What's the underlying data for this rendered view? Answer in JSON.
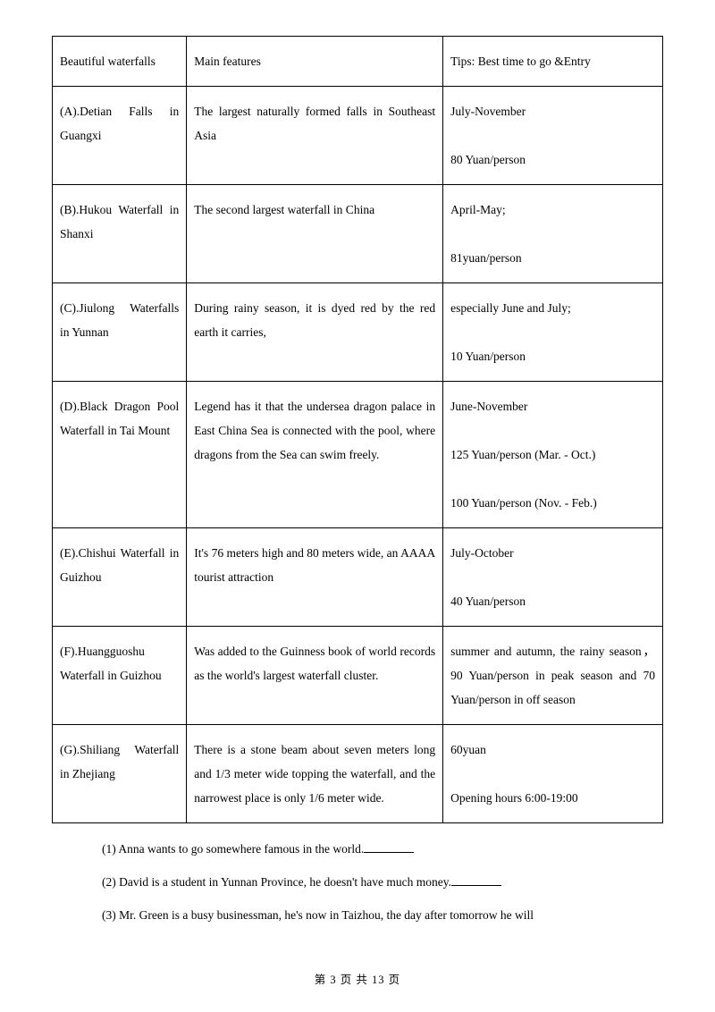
{
  "table": {
    "header": {
      "c1": "Beautiful waterfalls",
      "c2": "Main features",
      "c3": "Tips: Best time to go &Entry"
    },
    "rows": [
      {
        "c1": "(A).Detian Falls in Guangxi",
        "c2": "The largest naturally formed falls in Southeast Asia",
        "c3": "July-November\n80 Yuan/person"
      },
      {
        "c1": "(B).Hukou Waterfall in Shanxi",
        "c2": "The second largest waterfall in China",
        "c3": "April-May;\n81yuan/person"
      },
      {
        "c1": "(C).Jiulong Waterfalls in Yunnan",
        "c2": "During rainy season, it is dyed red by the red earth it carries,",
        "c3": "especially June and July;\n10 Yuan/person"
      },
      {
        "c1": "(D).Black Dragon Pool Waterfall in Tai Mount",
        "c2": "Legend has it that the undersea dragon palace in East China Sea is connected with the pool, where dragons from the Sea can swim freely.",
        "c3": "June-November\n125 Yuan/person (Mar. - Oct.)\n100 Yuan/person (Nov. - Feb.)"
      },
      {
        "c1": "(E).Chishui Waterfall in Guizhou",
        "c2": "It's 76 meters high and 80 meters wide, an AAAA tourist attraction",
        "c3": "July-October\n40 Yuan/person"
      },
      {
        "c1": "(F).Huangguoshu Waterfall in Guizhou",
        "c2": "Was added to the Guinness book of world records as the world's largest waterfall cluster.",
        "c3": "summer and autumn, the rainy season，90 Yuan/person in peak season and 70 Yuan/person in off season"
      },
      {
        "c1": "(G).Shiliang Waterfall in Zhejiang",
        "c2": "There is a stone beam about seven meters long and 1/3 meter wide topping the waterfall, and the narrowest place is only 1/6 meter wide.",
        "c3": "60yuan\nOpening hours 6:00-19:00"
      }
    ]
  },
  "questions": {
    "q1": "(1) Anna wants to go somewhere famous in the world.",
    "q2": "(2) David is a student in Yunnan Province, he doesn't have much money.",
    "q3": "(3) Mr. Green is a busy businessman, he's now in Taizhou, the day after tomorrow he will"
  },
  "footer": "第 3 页 共 13 页"
}
